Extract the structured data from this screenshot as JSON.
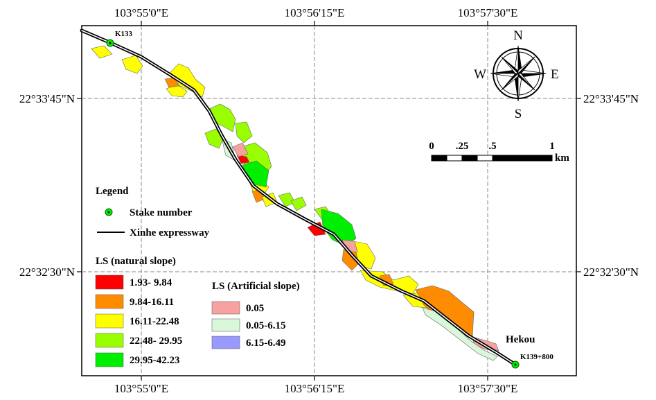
{
  "longitude_labels": [
    "103°55'0\"E",
    "103°56'15\"E",
    "103°57'30\"E"
  ],
  "latitude_labels": [
    "22°33'45\"N",
    "22°32'30\"N"
  ],
  "stake_start": "K133",
  "stake_end": "K139+800",
  "place_name": "Hekou",
  "compass": {
    "n": "N",
    "s": "S",
    "e": "E",
    "w": "W"
  },
  "scale_bar": {
    "ticks": [
      "0",
      ".25",
      ".5",
      "1"
    ],
    "unit": "km"
  },
  "legend": {
    "title": "Legend",
    "stake_label": "Stake number",
    "road_label": "Xinhe expressway",
    "natural_title": "LS (natural slope)",
    "natural_classes": [
      {
        "label": "1.93- 9.84",
        "color": "#ff0000"
      },
      {
        "label": "9.84-16.11",
        "color": "#ff8c00"
      },
      {
        "label": "16.11-22.48",
        "color": "#ffff00"
      },
      {
        "label": "22.48- 29.95",
        "color": "#99ff00"
      },
      {
        "label": "29.95-42.23",
        "color": "#00ee00"
      }
    ],
    "artificial_title": "LS (Artificial slope)",
    "artificial_classes": [
      {
        "label": "0.05",
        "color": "#f7a1a1"
      },
      {
        "label": "0.05-6.15",
        "color": "#d9f7d9"
      },
      {
        "label": "6.15-6.49",
        "color": "#9999ff"
      }
    ]
  }
}
